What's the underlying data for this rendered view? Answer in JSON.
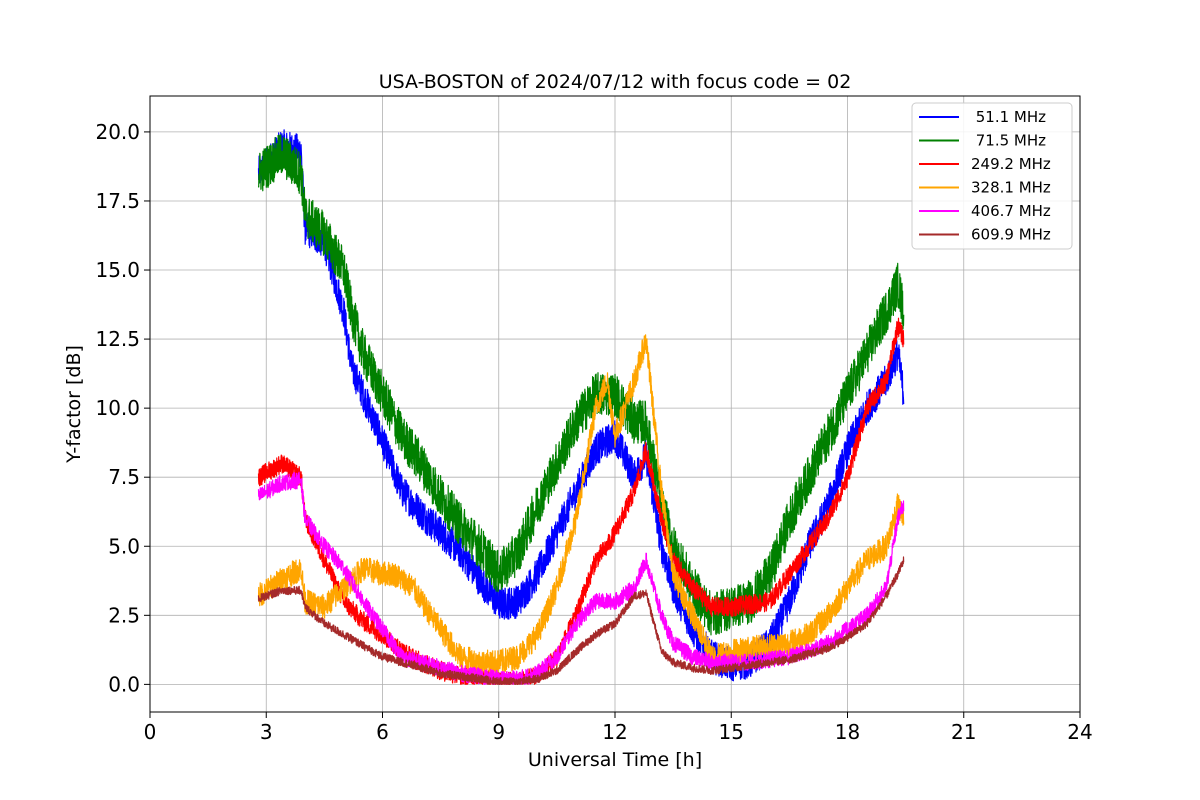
{
  "chart_data": {
    "type": "line",
    "title": "USA-BOSTON of 2024/07/12 with focus code = 02",
    "xlabel": "Universal Time [h]",
    "ylabel": "Y-factor [dB]",
    "xlim": [
      0,
      24
    ],
    "ylim": [
      -1.0,
      21.3
    ],
    "xticks": [
      0,
      3,
      6,
      9,
      12,
      15,
      18,
      21,
      24
    ],
    "xtick_labels": [
      "0",
      "3",
      "6",
      "9",
      "12",
      "15",
      "18",
      "21",
      "24"
    ],
    "yticks": [
      0.0,
      2.5,
      5.0,
      7.5,
      10.0,
      12.5,
      15.0,
      17.5,
      20.0
    ],
    "ytick_labels": [
      "0.0",
      "2.5",
      "5.0",
      "7.5",
      "10.0",
      "12.5",
      "15.0",
      "17.5",
      "20.0"
    ],
    "grid": true,
    "legend_position": "top-right",
    "series": [
      {
        "name": " 51.1 MHz",
        "color": "#0000ff",
        "noise": 0.6,
        "x": [
          2.8,
          3.4,
          3.9,
          4.0,
          4.5,
          5.0,
          5.2,
          5.5,
          6.0,
          6.5,
          7.0,
          7.5,
          8.0,
          8.5,
          9.0,
          9.5,
          10.0,
          10.5,
          11.0,
          11.5,
          12.0,
          12.5,
          12.8,
          13.2,
          13.5,
          14.0,
          14.5,
          15.0,
          15.5,
          16.0,
          16.5,
          17.0,
          17.5,
          18.0,
          18.5,
          19.0,
          19.3,
          19.45
        ],
        "y": [
          18.5,
          19.5,
          19.3,
          16.5,
          16.0,
          13.5,
          11.5,
          10.5,
          8.8,
          7.0,
          6.2,
          5.5,
          4.8,
          3.8,
          2.9,
          3.0,
          4.0,
          5.5,
          7.0,
          8.5,
          9.0,
          7.5,
          8.3,
          5.0,
          3.5,
          2.0,
          1.0,
          0.7,
          0.8,
          1.5,
          3.0,
          5.0,
          6.5,
          8.5,
          10.0,
          11.0,
          12.0,
          10.5
        ]
      },
      {
        "name": " 71.5 MHz",
        "color": "#008000",
        "noise": 0.8,
        "x": [
          2.8,
          3.4,
          3.9,
          4.0,
          4.5,
          5.0,
          5.2,
          5.5,
          6.0,
          6.5,
          7.0,
          7.5,
          8.0,
          8.5,
          9.0,
          9.5,
          10.0,
          10.5,
          11.0,
          11.5,
          12.0,
          12.5,
          12.8,
          13.2,
          13.5,
          14.0,
          14.5,
          15.0,
          15.5,
          16.0,
          16.5,
          17.0,
          17.5,
          18.0,
          18.5,
          19.0,
          19.3,
          19.45
        ],
        "y": [
          18.5,
          19.2,
          18.5,
          17.0,
          16.3,
          15.0,
          13.5,
          12.0,
          10.5,
          9.0,
          8.0,
          6.8,
          5.8,
          5.0,
          4.0,
          4.8,
          6.5,
          8.0,
          9.5,
          10.5,
          10.5,
          9.5,
          9.5,
          6.5,
          5.0,
          3.5,
          2.5,
          2.8,
          3.0,
          4.0,
          6.0,
          7.5,
          9.0,
          10.5,
          12.0,
          13.5,
          14.5,
          13.5
        ]
      },
      {
        "name": "249.2 MHz",
        "color": "#ff0000",
        "noise": 0.35,
        "x": [
          2.8,
          3.4,
          3.9,
          4.0,
          4.5,
          5.0,
          5.5,
          6.0,
          6.5,
          7.0,
          7.5,
          8.0,
          8.5,
          9.0,
          9.5,
          10.0,
          10.5,
          11.0,
          11.5,
          11.8,
          12.0,
          12.5,
          12.8,
          13.2,
          13.5,
          14.0,
          14.5,
          15.0,
          15.5,
          16.0,
          16.5,
          17.0,
          17.5,
          18.0,
          18.5,
          19.0,
          19.3,
          19.45
        ],
        "y": [
          7.5,
          8.0,
          7.5,
          6.0,
          4.5,
          3.0,
          2.3,
          1.8,
          1.2,
          0.8,
          0.5,
          0.3,
          0.2,
          0.1,
          0.1,
          0.3,
          1.0,
          2.5,
          4.5,
          5.0,
          5.5,
          7.0,
          8.5,
          6.0,
          4.5,
          3.5,
          2.8,
          2.8,
          2.9,
          3.0,
          4.0,
          5.0,
          6.0,
          7.5,
          10.0,
          11.0,
          13.0,
          12.5
        ]
      },
      {
        "name": "328.1 MHz",
        "color": "#ffa500",
        "noise": 0.45,
        "x": [
          2.8,
          3.4,
          3.9,
          4.0,
          4.5,
          5.0,
          5.5,
          6.0,
          6.3,
          6.8,
          7.0,
          7.5,
          8.0,
          8.5,
          9.0,
          9.5,
          10.0,
          10.5,
          11.0,
          11.5,
          11.8,
          12.0,
          12.5,
          12.8,
          13.2,
          13.5,
          14.0,
          14.5,
          15.0,
          15.5,
          16.0,
          16.5,
          17.0,
          17.5,
          18.0,
          18.5,
          19.0,
          19.3,
          19.45
        ],
        "y": [
          3.2,
          3.8,
          4.2,
          3.0,
          2.8,
          3.5,
          4.2,
          4.0,
          4.0,
          3.5,
          3.0,
          2.0,
          1.0,
          0.8,
          0.8,
          1.0,
          1.8,
          3.5,
          6.0,
          10.0,
          11.0,
          9.0,
          11.0,
          12.5,
          7.0,
          4.0,
          2.5,
          1.0,
          1.2,
          1.3,
          1.4,
          1.5,
          1.8,
          2.5,
          3.5,
          4.5,
          5.0,
          6.5,
          6.0
        ]
      },
      {
        "name": "406.7 MHz",
        "color": "#ff00ff",
        "noise": 0.3,
        "x": [
          2.8,
          3.4,
          3.9,
          4.0,
          4.5,
          5.0,
          5.5,
          6.0,
          6.5,
          7.0,
          7.5,
          8.0,
          8.5,
          9.0,
          9.5,
          10.0,
          10.5,
          11.0,
          11.5,
          12.0,
          12.5,
          12.8,
          13.2,
          13.5,
          14.0,
          14.5,
          15.0,
          15.5,
          16.0,
          16.5,
          17.0,
          17.5,
          18.0,
          18.5,
          19.0,
          19.3,
          19.45
        ],
        "y": [
          6.8,
          7.3,
          7.4,
          6.0,
          5.0,
          4.2,
          3.0,
          2.0,
          1.0,
          0.8,
          0.6,
          0.4,
          0.3,
          0.2,
          0.2,
          0.4,
          1.0,
          2.2,
          3.0,
          3.0,
          3.5,
          4.5,
          2.5,
          1.5,
          1.0,
          0.8,
          0.8,
          0.8,
          0.9,
          1.0,
          1.2,
          1.5,
          2.0,
          2.5,
          3.5,
          6.0,
          6.5
        ]
      },
      {
        "name": "609.9 MHz",
        "color": "#a52a2a",
        "noise": 0.15,
        "x": [
          2.8,
          3.4,
          3.9,
          4.0,
          4.5,
          5.0,
          5.5,
          6.0,
          6.5,
          7.0,
          7.5,
          8.0,
          8.5,
          9.0,
          9.5,
          10.0,
          10.5,
          11.0,
          11.5,
          12.0,
          12.5,
          12.8,
          13.2,
          13.5,
          14.0,
          14.5,
          15.0,
          15.5,
          16.0,
          16.5,
          17.0,
          17.5,
          18.0,
          18.5,
          19.0,
          19.3,
          19.45
        ],
        "y": [
          3.1,
          3.4,
          3.4,
          2.8,
          2.2,
          1.8,
          1.4,
          1.0,
          0.8,
          0.6,
          0.4,
          0.3,
          0.2,
          0.1,
          0.1,
          0.2,
          0.5,
          1.2,
          1.8,
          2.2,
          3.2,
          3.3,
          1.2,
          0.8,
          0.6,
          0.5,
          0.6,
          0.7,
          0.8,
          0.9,
          1.1,
          1.3,
          1.7,
          2.2,
          3.2,
          4.0,
          4.5
        ]
      }
    ]
  }
}
